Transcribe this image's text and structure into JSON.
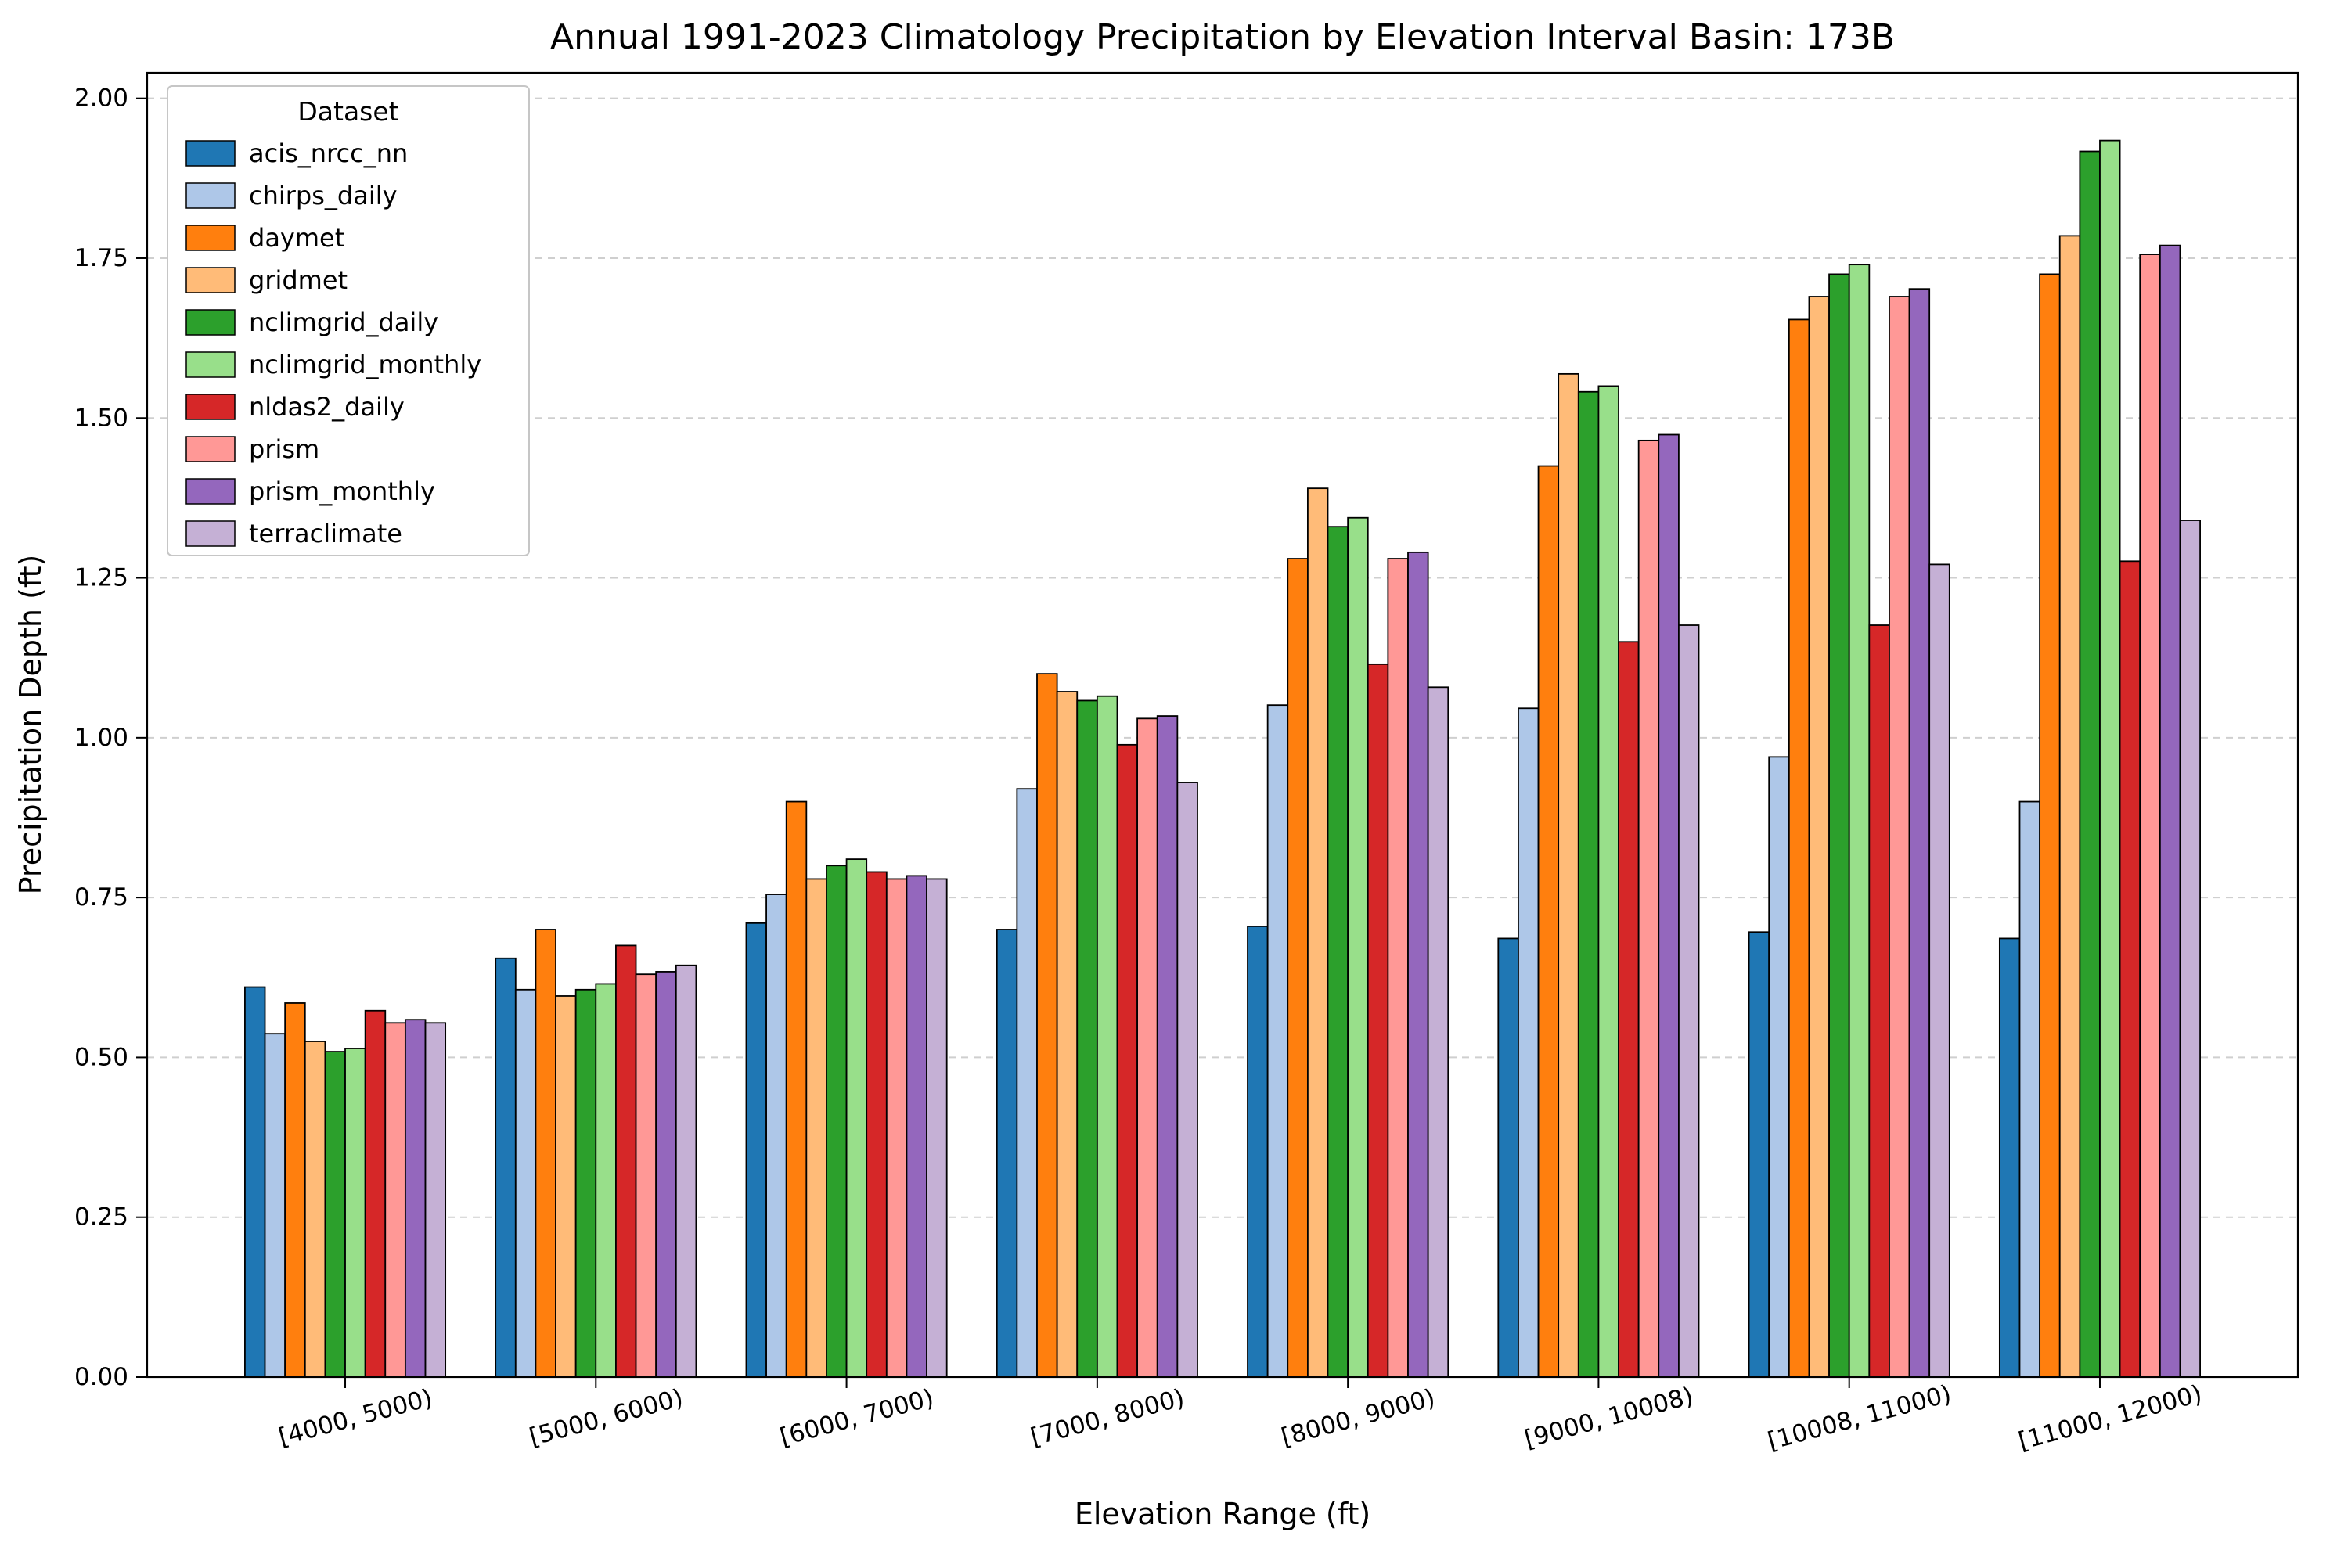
{
  "chart_data": {
    "type": "bar",
    "title": "Annual 1991-2023 Climatology Precipitation by Elevation Interval Basin: 173B",
    "xlabel": "Elevation Range (ft)",
    "ylabel": "Precipitation Depth (ft)",
    "legend_title": "Dataset",
    "legend_position": "upper-left",
    "grid": "horizontal-dashed",
    "ylim": [
      0,
      2.04
    ],
    "yticks": [
      "0.00",
      "0.25",
      "0.50",
      "0.75",
      "1.00",
      "1.25",
      "1.50",
      "1.75",
      "2.00"
    ],
    "categories": [
      "[4000, 5000)",
      "[5000, 6000)",
      "[6000, 7000)",
      "[7000, 8000)",
      "[8000, 9000)",
      "[9000, 10008)",
      "[10008, 11000)",
      "[11000, 12000)"
    ],
    "series": [
      {
        "name": "acis_nrcc_nn",
        "color": "#1f77b4",
        "values": [
          0.61,
          0.655,
          0.71,
          0.7,
          0.705,
          0.686,
          0.696,
          0.686
        ]
      },
      {
        "name": "chirps_daily",
        "color": "#aec7e8",
        "values": [
          0.537,
          0.606,
          0.755,
          0.92,
          1.051,
          1.046,
          0.97,
          0.9
        ]
      },
      {
        "name": "daymet",
        "color": "#ff7f0e",
        "values": [
          0.585,
          0.7,
          0.9,
          1.1,
          1.28,
          1.425,
          1.654,
          1.725
        ]
      },
      {
        "name": "gridmet",
        "color": "#ffbb78",
        "values": [
          0.525,
          0.596,
          0.779,
          1.072,
          1.39,
          1.569,
          1.69,
          1.785
        ]
      },
      {
        "name": "nclimgrid_daily",
        "color": "#2ca02c",
        "values": [
          0.509,
          0.606,
          0.8,
          1.058,
          1.33,
          1.541,
          1.725,
          1.917
        ]
      },
      {
        "name": "nclimgrid_monthly",
        "color": "#98df8a",
        "values": [
          0.514,
          0.615,
          0.81,
          1.065,
          1.344,
          1.55,
          1.74,
          1.934
        ]
      },
      {
        "name": "nldas2_daily",
        "color": "#d62728",
        "values": [
          0.573,
          0.675,
          0.79,
          0.989,
          1.115,
          1.15,
          1.176,
          1.276
        ]
      },
      {
        "name": "prism",
        "color": "#ff9896",
        "values": [
          0.554,
          0.63,
          0.779,
          1.03,
          1.28,
          1.465,
          1.69,
          1.756
        ]
      },
      {
        "name": "prism_monthly",
        "color": "#9467bd",
        "values": [
          0.559,
          0.634,
          0.784,
          1.034,
          1.29,
          1.474,
          1.702,
          1.77
        ]
      },
      {
        "name": "terraclimate",
        "color": "#c5b0d5",
        "values": [
          0.554,
          0.644,
          0.779,
          0.93,
          1.079,
          1.176,
          1.271,
          1.34
        ]
      }
    ]
  }
}
